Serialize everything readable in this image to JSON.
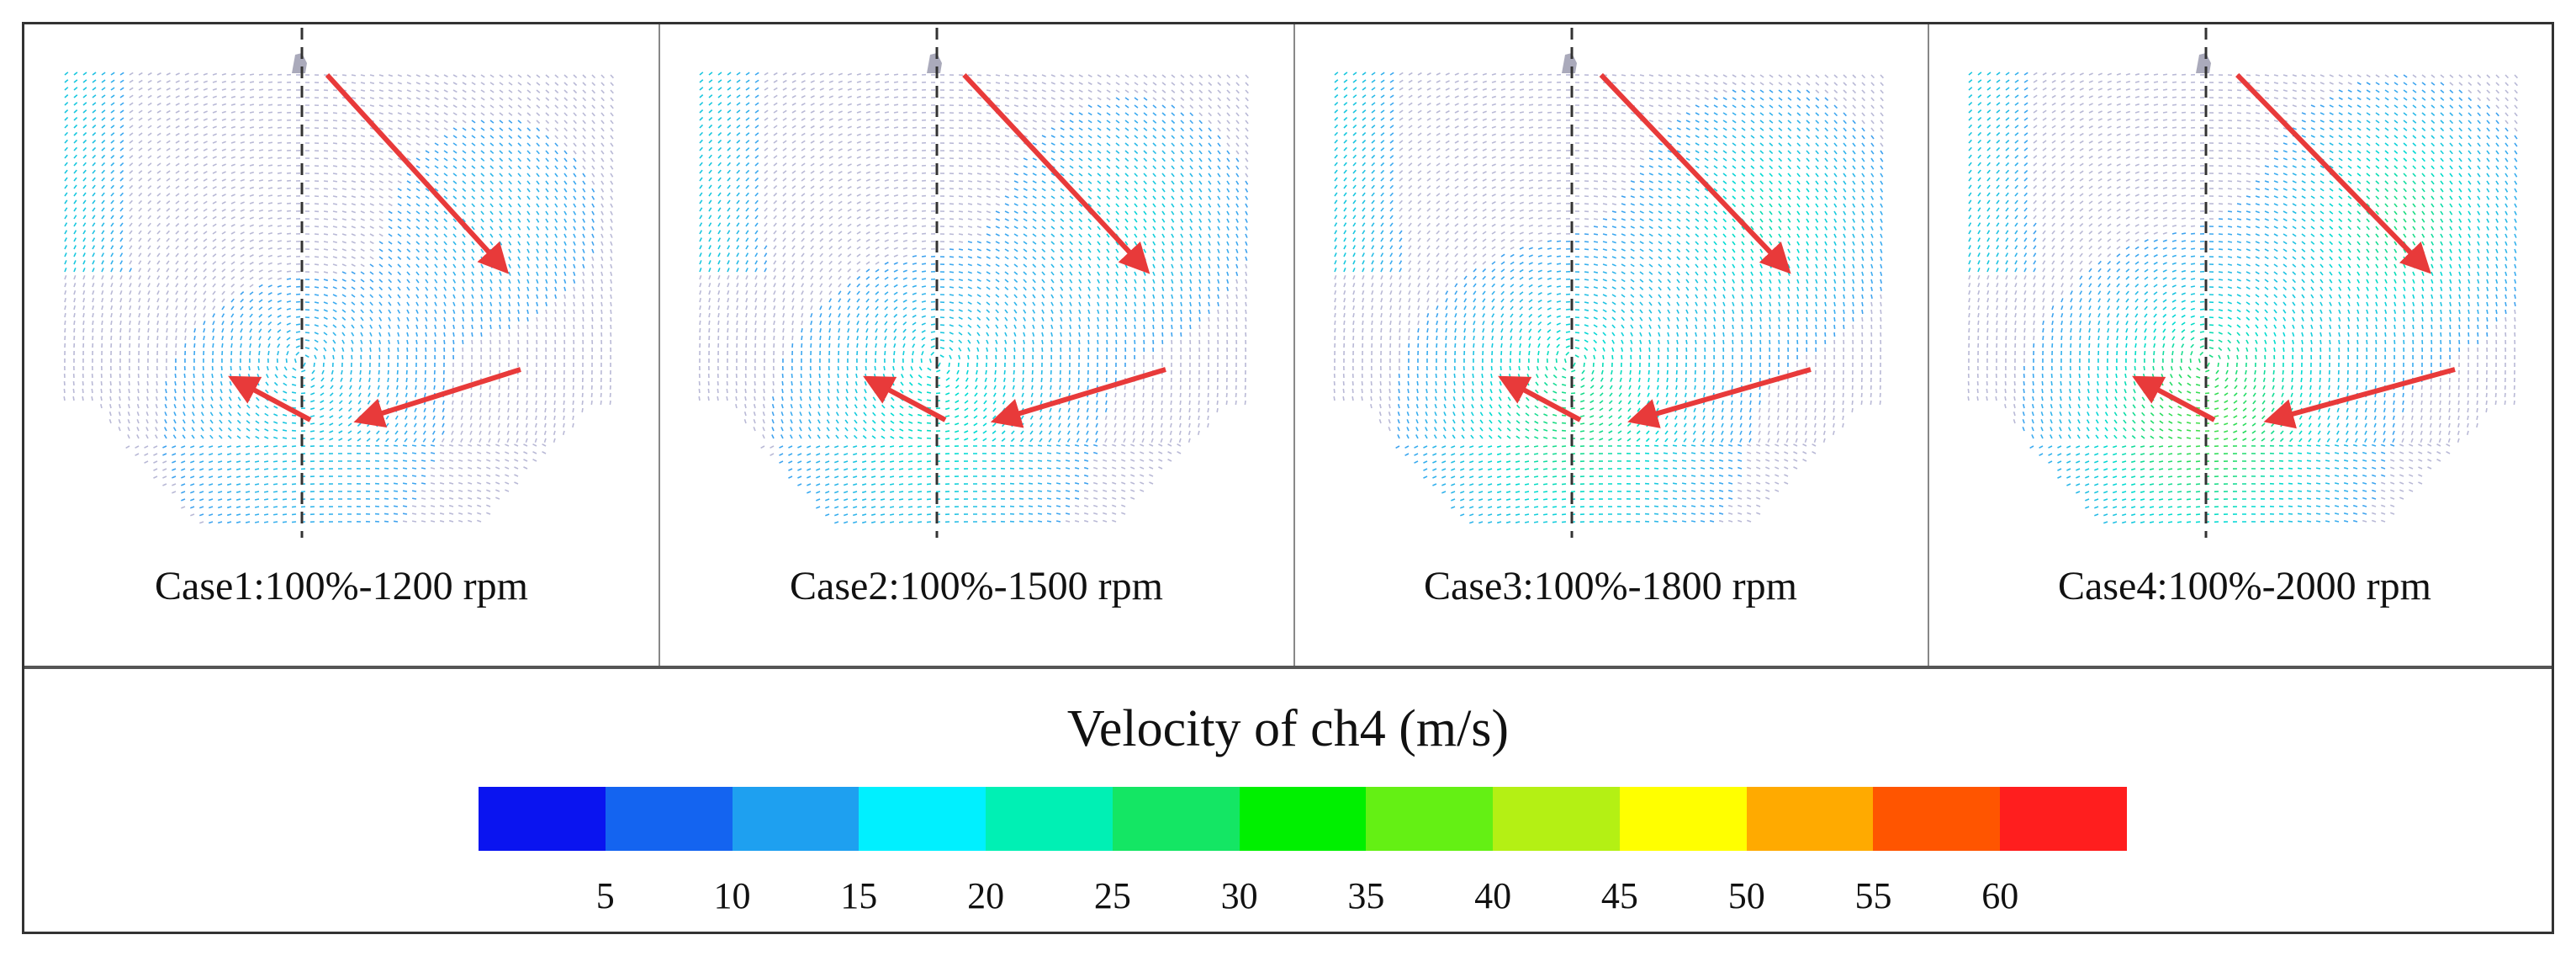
{
  "cases": [
    {
      "label": "Case1:100%-1200 rpm",
      "intensity": 0.35
    },
    {
      "label": "Case2:100%-1500 rpm",
      "intensity": 0.55
    },
    {
      "label": "Case3:100%-1800 rpm",
      "intensity": 0.75
    },
    {
      "label": "Case4:100%-2000 rpm",
      "intensity": 0.95
    }
  ],
  "colorbar": {
    "title": "Velocity of ch4 (m/s)",
    "colors": [
      "#0a14f0",
      "#1464f0",
      "#1ea0f0",
      "#00f0ff",
      "#00f0b4",
      "#14e664",
      "#00f000",
      "#64f014",
      "#b4f014",
      "#ffff00",
      "#ffaa00",
      "#ff5500",
      "#ff1e1e"
    ],
    "ticks": [
      "5",
      "10",
      "15",
      "20",
      "25",
      "30",
      "35",
      "40",
      "45",
      "50",
      "55",
      "60"
    ]
  },
  "arrow_color": "#e83a3a"
}
